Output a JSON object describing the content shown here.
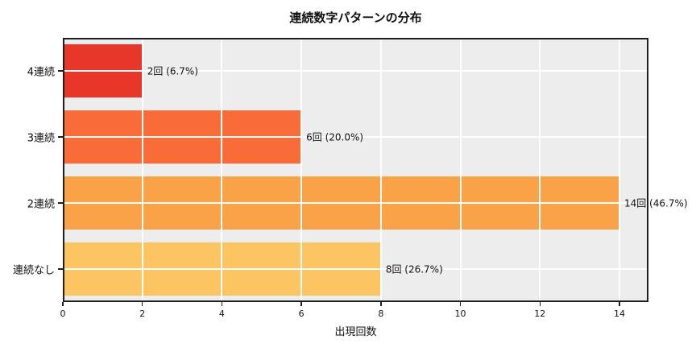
{
  "chart_data": {
    "type": "bar",
    "orientation": "horizontal",
    "title": "連続数字パターンの分布",
    "xlabel": "出現回数",
    "ylabel": "",
    "categories": [
      "4連続",
      "3連続",
      "2連続",
      "連続なし"
    ],
    "values": [
      2,
      6,
      14,
      8
    ],
    "bar_labels": [
      "2回 (6.7%)",
      "6回 (20.0%)",
      "14回 (46.7%)",
      "8回 (26.7%)"
    ],
    "bar_colors": [
      "#e8362a",
      "#f96c38",
      "#faa247",
      "#fcc562"
    ],
    "x_ticks": [
      0,
      2,
      4,
      6,
      8,
      10,
      12,
      14
    ],
    "xlim": [
      0,
      14.73
    ],
    "grid": true,
    "legend": false,
    "plot_background": "#ededed",
    "grid_color": "#ffffff",
    "figure_background": "#ffffff",
    "spine_color": "#1f1f1f"
  }
}
